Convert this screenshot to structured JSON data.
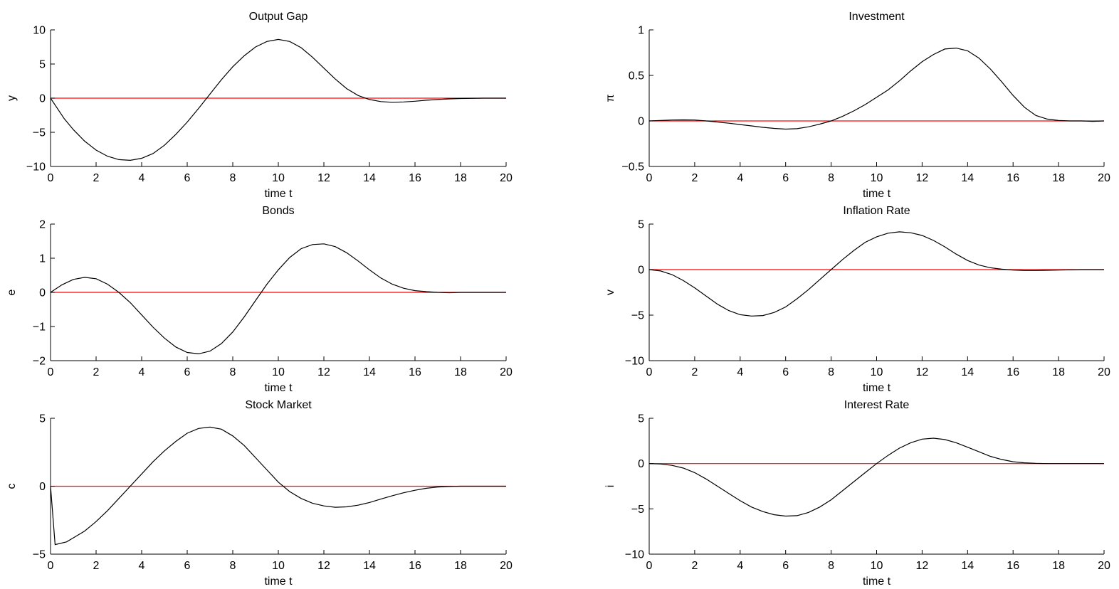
{
  "chart_data": [
    {
      "type": "line",
      "title": "Output Gap",
      "xlabel": "time t",
      "ylabel": "y",
      "xlim": [
        0,
        20
      ],
      "ylim": [
        -10,
        10
      ],
      "xticks": [
        0,
        2,
        4,
        6,
        8,
        10,
        12,
        14,
        16,
        18,
        20
      ],
      "yticks": [
        -10,
        -5,
        0,
        5,
        10
      ],
      "ytick_labels": [
        "−10",
        "−5",
        "0",
        "5",
        "10"
      ],
      "series": [
        {
          "color": "#ff0000",
          "x": [
            0,
            20
          ],
          "y": [
            0,
            0
          ]
        },
        {
          "color": "#000000",
          "x": [
            0,
            0.3,
            0.6,
            1,
            1.5,
            2,
            2.5,
            3,
            3.5,
            4,
            4.5,
            5,
            5.5,
            6,
            6.5,
            7,
            7.5,
            8,
            8.5,
            9,
            9.5,
            10,
            10.5,
            11,
            11.5,
            12,
            12.5,
            13,
            13.5,
            14,
            14.5,
            15,
            15.5,
            16,
            16.5,
            17,
            17.5,
            18,
            19,
            20
          ],
          "y": [
            0,
            -1.5,
            -3.0,
            -4.6,
            -6.3,
            -7.6,
            -8.5,
            -9.0,
            -9.1,
            -8.8,
            -8.1,
            -6.9,
            -5.3,
            -3.5,
            -1.5,
            0.6,
            2.7,
            4.6,
            6.2,
            7.5,
            8.3,
            8.6,
            8.3,
            7.4,
            6.0,
            4.4,
            2.8,
            1.4,
            0.4,
            -0.2,
            -0.5,
            -0.6,
            -0.55,
            -0.45,
            -0.3,
            -0.2,
            -0.1,
            -0.05,
            0,
            0
          ]
        }
      ]
    },
    {
      "type": "line",
      "title": "Investment",
      "xlabel": "time t",
      "ylabel": "π",
      "xlim": [
        0,
        20
      ],
      "ylim": [
        -0.5,
        1
      ],
      "xticks": [
        0,
        2,
        4,
        6,
        8,
        10,
        12,
        14,
        16,
        18,
        20
      ],
      "yticks": [
        -0.5,
        0,
        0.5,
        1
      ],
      "ytick_labels": [
        "−0.5",
        "0",
        "0.5",
        "1"
      ],
      "series": [
        {
          "color": "#ff0000",
          "x": [
            0,
            20
          ],
          "y": [
            0,
            0
          ]
        },
        {
          "color": "#000000",
          "x": [
            0,
            0.5,
            1,
            1.5,
            2,
            2.5,
            3,
            3.5,
            4,
            4.5,
            5,
            5.5,
            6,
            6.5,
            7,
            7.5,
            8,
            8.5,
            9,
            9.5,
            10,
            10.5,
            11,
            11.5,
            12,
            12.5,
            13,
            13.5,
            14,
            14.5,
            15,
            15.5,
            16,
            16.5,
            17,
            17.5,
            18,
            18.5,
            19,
            19.5,
            20
          ],
          "y": [
            0,
            0.005,
            0.01,
            0.012,
            0.01,
            0.0,
            -0.012,
            -0.025,
            -0.04,
            -0.055,
            -0.07,
            -0.082,
            -0.09,
            -0.085,
            -0.065,
            -0.035,
            0.0,
            0.05,
            0.11,
            0.18,
            0.26,
            0.34,
            0.44,
            0.55,
            0.65,
            0.73,
            0.79,
            0.8,
            0.77,
            0.69,
            0.57,
            0.43,
            0.28,
            0.15,
            0.06,
            0.02,
            0.005,
            0.0,
            0.0,
            -0.005,
            0.0
          ]
        }
      ]
    },
    {
      "type": "line",
      "title": "Bonds",
      "xlabel": "time t",
      "ylabel": "e",
      "xlim": [
        0,
        20
      ],
      "ylim": [
        -2,
        2
      ],
      "xticks": [
        0,
        2,
        4,
        6,
        8,
        10,
        12,
        14,
        16,
        18,
        20
      ],
      "yticks": [
        -2,
        -1,
        0,
        1,
        2
      ],
      "ytick_labels": [
        "−2",
        "−1",
        "0",
        "1",
        "2"
      ],
      "series": [
        {
          "color": "#ff0000",
          "x": [
            0,
            20
          ],
          "y": [
            0,
            0
          ]
        },
        {
          "color": "#000000",
          "x": [
            0,
            0.5,
            1,
            1.5,
            2,
            2.5,
            3,
            3.5,
            4,
            4.5,
            5,
            5.5,
            6,
            6.5,
            7,
            7.5,
            8,
            8.5,
            9,
            9.5,
            10,
            10.5,
            11,
            11.5,
            12,
            12.5,
            13,
            13.5,
            14,
            14.5,
            15,
            15.5,
            16,
            16.5,
            17,
            17.5,
            18,
            19,
            20
          ],
          "y": [
            0,
            0.22,
            0.38,
            0.44,
            0.4,
            0.24,
            0.0,
            -0.3,
            -0.66,
            -1.02,
            -1.34,
            -1.6,
            -1.76,
            -1.8,
            -1.72,
            -1.5,
            -1.16,
            -0.72,
            -0.24,
            0.24,
            0.66,
            1.02,
            1.28,
            1.4,
            1.42,
            1.34,
            1.16,
            0.92,
            0.66,
            0.42,
            0.24,
            0.12,
            0.05,
            0.02,
            0.0,
            -0.01,
            0.0,
            0,
            0
          ]
        }
      ]
    },
    {
      "type": "line",
      "title": "Inflation  Rate",
      "xlabel": "time t",
      "ylabel": "v",
      "xlim": [
        0,
        20
      ],
      "ylim": [
        -10,
        5
      ],
      "xticks": [
        0,
        2,
        4,
        6,
        8,
        10,
        12,
        14,
        16,
        18,
        20
      ],
      "yticks": [
        -10,
        -5,
        0,
        5
      ],
      "ytick_labels": [
        "−10",
        "−5",
        "0",
        "5"
      ],
      "series": [
        {
          "color": "#ff0000",
          "x": [
            0,
            20
          ],
          "y": [
            0,
            0
          ]
        },
        {
          "color": "#000000",
          "x": [
            0,
            0.5,
            1,
            1.5,
            2,
            2.5,
            3,
            3.5,
            4,
            4.5,
            5,
            5.5,
            6,
            6.5,
            7,
            7.5,
            8,
            8.5,
            9,
            9.5,
            10,
            10.5,
            11,
            11.5,
            12,
            12.5,
            13,
            13.5,
            14,
            14.5,
            15,
            15.5,
            16,
            16.5,
            17,
            17.5,
            18,
            19,
            20
          ],
          "y": [
            0,
            -0.15,
            -0.55,
            -1.2,
            -2.0,
            -2.9,
            -3.8,
            -4.5,
            -4.95,
            -5.1,
            -5.05,
            -4.7,
            -4.1,
            -3.2,
            -2.2,
            -1.1,
            0.0,
            1.1,
            2.1,
            3.0,
            3.6,
            4.0,
            4.15,
            4.05,
            3.75,
            3.2,
            2.5,
            1.7,
            1.0,
            0.5,
            0.2,
            0.05,
            -0.05,
            -0.1,
            -0.1,
            -0.08,
            -0.05,
            0,
            0
          ]
        }
      ]
    },
    {
      "type": "line",
      "title": "Stock Market",
      "xlabel": "time t",
      "ylabel": "c",
      "xlim": [
        0,
        20
      ],
      "ylim": [
        -5,
        5
      ],
      "xticks": [
        0,
        2,
        4,
        6,
        8,
        10,
        12,
        14,
        16,
        18,
        20
      ],
      "yticks": [
        -5,
        0,
        5
      ],
      "ytick_labels": [
        "−5",
        "0",
        "5"
      ],
      "series": [
        {
          "color": "#ff0000",
          "x": [
            0,
            20
          ],
          "y": [
            0,
            0
          ]
        },
        {
          "color": "#000000",
          "x": [
            0,
            0.2,
            0.7,
            1,
            1.5,
            2,
            2.5,
            3,
            3.5,
            4,
            4.5,
            5,
            5.5,
            6,
            6.5,
            7,
            7.5,
            8,
            8.5,
            9,
            9.5,
            10,
            10.5,
            11,
            11.5,
            12,
            12.5,
            13,
            13.5,
            14,
            14.5,
            15,
            15.5,
            16,
            16.5,
            17,
            17.5,
            18,
            19,
            20
          ],
          "y": [
            0,
            -4.3,
            -4.1,
            -3.8,
            -3.3,
            -2.6,
            -1.8,
            -0.9,
            0.0,
            0.9,
            1.8,
            2.6,
            3.3,
            3.9,
            4.25,
            4.35,
            4.2,
            3.7,
            3.0,
            2.1,
            1.2,
            0.3,
            -0.4,
            -0.9,
            -1.25,
            -1.45,
            -1.55,
            -1.52,
            -1.4,
            -1.2,
            -0.95,
            -0.7,
            -0.48,
            -0.3,
            -0.15,
            -0.06,
            -0.02,
            0.0,
            0,
            0
          ]
        }
      ]
    },
    {
      "type": "line",
      "title": "Interest Rate",
      "xlabel": "time t",
      "ylabel": "i",
      "xlim": [
        0,
        20
      ],
      "ylim": [
        -10,
        5
      ],
      "xticks": [
        0,
        2,
        4,
        6,
        8,
        10,
        12,
        14,
        16,
        18,
        20
      ],
      "yticks": [
        -10,
        -5,
        0,
        5
      ],
      "ytick_labels": [
        "−10",
        "−5",
        "0",
        "5"
      ],
      "series": [
        {
          "color": "#ff0000",
          "x": [
            0,
            20
          ],
          "y": [
            0,
            0
          ]
        },
        {
          "color": "#000000",
          "x": [
            0,
            0.5,
            1,
            1.5,
            2,
            2.5,
            3,
            3.5,
            4,
            4.5,
            5,
            5.5,
            6,
            6.5,
            7,
            7.5,
            8,
            8.5,
            9,
            9.5,
            10,
            10.5,
            11,
            11.5,
            12,
            12.5,
            13,
            13.5,
            14,
            14.5,
            15,
            15.5,
            16,
            16.5,
            17,
            17.5,
            18,
            19,
            20
          ],
          "y": [
            0,
            -0.05,
            -0.2,
            -0.5,
            -1.0,
            -1.7,
            -2.5,
            -3.3,
            -4.1,
            -4.8,
            -5.3,
            -5.65,
            -5.8,
            -5.75,
            -5.4,
            -4.8,
            -4.0,
            -3.0,
            -2.0,
            -1.0,
            0.0,
            0.9,
            1.7,
            2.3,
            2.7,
            2.8,
            2.65,
            2.3,
            1.8,
            1.3,
            0.8,
            0.45,
            0.2,
            0.08,
            0.02,
            0.0,
            0.0,
            0,
            0
          ]
        }
      ]
    }
  ]
}
